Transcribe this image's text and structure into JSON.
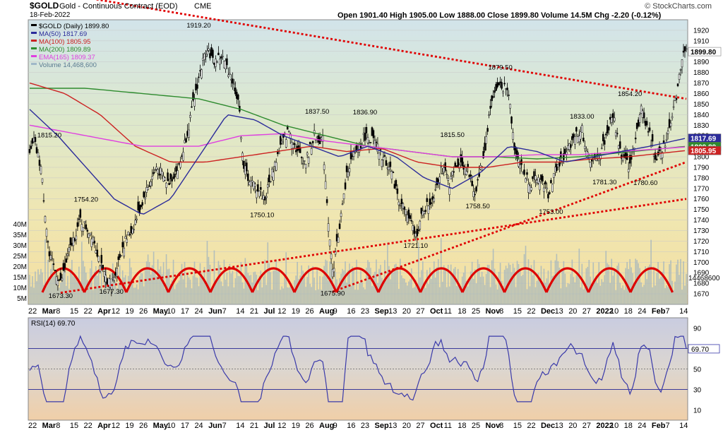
{
  "header": {
    "symbol": "$GOLD",
    "description": "Gold - Continuous Contract (EOD)",
    "exchange": "CME",
    "date": "18-Feb-2022",
    "ohlc": "Open 1901.40 High 1905.00 Low 1888.00 Close 1899.80 Volume 14.5M Chg -2.20 (-0.12%)",
    "watermark": "© StockCharts.com"
  },
  "legend": [
    {
      "text": "$GOLD (Daily) 1899.80",
      "color": "#000000"
    },
    {
      "text": "MA(50) 1817.69",
      "color": "#2b2b9a"
    },
    {
      "text": "MA(100) 1805.95",
      "color": "#cc2222"
    },
    {
      "text": "MA(200) 1809.89",
      "color": "#2e8b2e"
    },
    {
      "text": "EMA(165) 1809.37",
      "color": "#e040e0"
    },
    {
      "text": "Volume 14,468,600",
      "color": "#a0b8c8"
    }
  ],
  "price_axis": {
    "ticks": [
      "1920",
      "1910",
      "1900",
      "1890",
      "1880",
      "1870",
      "1860",
      "1850",
      "1840",
      "1830",
      "1820",
      "1810",
      "1800",
      "1790",
      "1780",
      "1770",
      "1760",
      "1750",
      "1740",
      "1730",
      "1720",
      "1710",
      "1700",
      "1690",
      "1680",
      "1670"
    ],
    "badges": [
      {
        "text": "1899.80",
        "value": 1899.8,
        "bg": "#ffffff",
        "fg": "#000000"
      },
      {
        "text": "1817.69",
        "value": 1817.69,
        "bg": "#2b2b9a",
        "fg": "#ffffff"
      },
      {
        "text": "1809.89",
        "value": 1809.89,
        "bg": "#2e8b2e",
        "fg": "#ffffff"
      },
      {
        "text": "1805.95",
        "value": 1805.95,
        "bg": "#cc2222",
        "fg": "#ffffff"
      }
    ],
    "volume_badge": "14468600"
  },
  "volume_axis": {
    "ticks": [
      "40M",
      "35M",
      "30M",
      "25M",
      "20M",
      "15M",
      "10M",
      "5M"
    ]
  },
  "x_labels": [
    "22",
    "Mar",
    "8",
    "15",
    "22",
    "Apr",
    "12",
    "19",
    "26",
    "May",
    "10",
    "17",
    "24",
    "Jun",
    "7",
    "14",
    "21",
    "Jul",
    "12",
    "19",
    "26",
    "Aug",
    "9",
    "16",
    "23",
    "Sep",
    "13",
    "20",
    "27",
    "Oct",
    "11",
    "18",
    "25",
    "Nov",
    "8",
    "15",
    "22",
    "Dec",
    "13",
    "20",
    "27",
    "2022",
    "10",
    "18",
    "24",
    "Feb",
    "7",
    "14"
  ],
  "rsi": {
    "label": "RSI(14) 69.70",
    "value_badge": "69.70",
    "ticks": [
      "90",
      "70",
      "50",
      "30",
      "10"
    ]
  },
  "chart_data": {
    "type": "candlestick",
    "title": "$GOLD Gold - Continuous Contract (EOD) CME",
    "y_range": [
      1660,
      1930
    ],
    "annotations": [
      {
        "text": "1815.20",
        "value": 1815.2
      },
      {
        "text": "1754.20",
        "value": 1754.2
      },
      {
        "text": "1673.30",
        "value": 1673.3
      },
      {
        "text": "1677.30",
        "value": 1677.3
      },
      {
        "text": "1919.20",
        "value": 1919.2
      },
      {
        "text": "1750.10",
        "value": 1750.1
      },
      {
        "text": "1837.50",
        "value": 1837.5
      },
      {
        "text": "1675.90",
        "value": 1675.9
      },
      {
        "text": "1836.90",
        "value": 1836.9
      },
      {
        "text": "1721.10",
        "value": 1721.1
      },
      {
        "text": "1815.50",
        "value": 1815.5
      },
      {
        "text": "1758.50",
        "value": 1758.5
      },
      {
        "text": "1879.50",
        "value": 1879.5
      },
      {
        "text": "1753.00",
        "value": 1753.0
      },
      {
        "text": "1833.00",
        "value": 1833.0
      },
      {
        "text": "1781.30",
        "value": 1781.3
      },
      {
        "text": "1854.20",
        "value": 1854.2
      },
      {
        "text": "1780.60",
        "value": 1780.6
      }
    ],
    "close_path": [
      {
        "x": 0,
        "v": 1800
      },
      {
        "x": 3,
        "v": 1815
      },
      {
        "x": 8,
        "v": 1790
      },
      {
        "x": 14,
        "v": 1705
      },
      {
        "x": 22,
        "v": 1680
      },
      {
        "x": 28,
        "v": 1710
      },
      {
        "x": 36,
        "v": 1740
      },
      {
        "x": 45,
        "v": 1725
      },
      {
        "x": 52,
        "v": 1690
      },
      {
        "x": 58,
        "v": 1678
      },
      {
        "x": 66,
        "v": 1715
      },
      {
        "x": 74,
        "v": 1735
      },
      {
        "x": 82,
        "v": 1765
      },
      {
        "x": 90,
        "v": 1790
      },
      {
        "x": 98,
        "v": 1775
      },
      {
        "x": 106,
        "v": 1790
      },
      {
        "x": 113,
        "v": 1830
      },
      {
        "x": 120,
        "v": 1875
      },
      {
        "x": 126,
        "v": 1905
      },
      {
        "x": 130,
        "v": 1890
      },
      {
        "x": 136,
        "v": 1895
      },
      {
        "x": 142,
        "v": 1880
      },
      {
        "x": 148,
        "v": 1855
      },
      {
        "x": 152,
        "v": 1790
      },
      {
        "x": 157,
        "v": 1775
      },
      {
        "x": 162,
        "v": 1770
      },
      {
        "x": 167,
        "v": 1760
      },
      {
        "x": 172,
        "v": 1785
      },
      {
        "x": 178,
        "v": 1810
      },
      {
        "x": 184,
        "v": 1825
      },
      {
        "x": 190,
        "v": 1805
      },
      {
        "x": 196,
        "v": 1795
      },
      {
        "x": 202,
        "v": 1820
      },
      {
        "x": 208,
        "v": 1815
      },
      {
        "x": 212,
        "v": 1740
      },
      {
        "x": 215,
        "v": 1690
      },
      {
        "x": 220,
        "v": 1735
      },
      {
        "x": 226,
        "v": 1790
      },
      {
        "x": 232,
        "v": 1805
      },
      {
        "x": 238,
        "v": 1820
      },
      {
        "x": 244,
        "v": 1815
      },
      {
        "x": 250,
        "v": 1800
      },
      {
        "x": 256,
        "v": 1790
      },
      {
        "x": 262,
        "v": 1760
      },
      {
        "x": 268,
        "v": 1745
      },
      {
        "x": 274,
        "v": 1725
      },
      {
        "x": 280,
        "v": 1750
      },
      {
        "x": 286,
        "v": 1760
      },
      {
        "x": 292,
        "v": 1790
      },
      {
        "x": 298,
        "v": 1775
      },
      {
        "x": 304,
        "v": 1795
      },
      {
        "x": 310,
        "v": 1790
      },
      {
        "x": 316,
        "v": 1765
      },
      {
        "x": 322,
        "v": 1800
      },
      {
        "x": 328,
        "v": 1855
      },
      {
        "x": 334,
        "v": 1870
      },
      {
        "x": 340,
        "v": 1860
      },
      {
        "x": 344,
        "v": 1810
      },
      {
        "x": 350,
        "v": 1785
      },
      {
        "x": 356,
        "v": 1775
      },
      {
        "x": 362,
        "v": 1780
      },
      {
        "x": 368,
        "v": 1765
      },
      {
        "x": 374,
        "v": 1790
      },
      {
        "x": 380,
        "v": 1800
      },
      {
        "x": 386,
        "v": 1820
      },
      {
        "x": 392,
        "v": 1825
      },
      {
        "x": 396,
        "v": 1800
      },
      {
        "x": 402,
        "v": 1795
      },
      {
        "x": 408,
        "v": 1815
      },
      {
        "x": 414,
        "v": 1840
      },
      {
        "x": 420,
        "v": 1800
      },
      {
        "x": 426,
        "v": 1790
      },
      {
        "x": 430,
        "v": 1820
      },
      {
        "x": 434,
        "v": 1845
      },
      {
        "x": 438,
        "v": 1830
      },
      {
        "x": 444,
        "v": 1800
      },
      {
        "x": 450,
        "v": 1810
      },
      {
        "x": 456,
        "v": 1840
      },
      {
        "x": 460,
        "v": 1865
      },
      {
        "x": 463,
        "v": 1895
      },
      {
        "x": 466,
        "v": 1899.8
      }
    ],
    "ma50": [
      {
        "x": 0,
        "v": 1845
      },
      {
        "x": 20,
        "v": 1820
      },
      {
        "x": 40,
        "v": 1790
      },
      {
        "x": 60,
        "v": 1760
      },
      {
        "x": 80,
        "v": 1745
      },
      {
        "x": 100,
        "v": 1760
      },
      {
        "x": 120,
        "v": 1800
      },
      {
        "x": 140,
        "v": 1840
      },
      {
        "x": 160,
        "v": 1835
      },
      {
        "x": 180,
        "v": 1820
      },
      {
        "x": 200,
        "v": 1810
      },
      {
        "x": 220,
        "v": 1800
      },
      {
        "x": 240,
        "v": 1810
      },
      {
        "x": 260,
        "v": 1800
      },
      {
        "x": 280,
        "v": 1780
      },
      {
        "x": 300,
        "v": 1770
      },
      {
        "x": 320,
        "v": 1785
      },
      {
        "x": 340,
        "v": 1810
      },
      {
        "x": 360,
        "v": 1805
      },
      {
        "x": 380,
        "v": 1795
      },
      {
        "x": 400,
        "v": 1800
      },
      {
        "x": 420,
        "v": 1805
      },
      {
        "x": 440,
        "v": 1810
      },
      {
        "x": 466,
        "v": 1817.69
      }
    ],
    "ma100": [
      {
        "x": 0,
        "v": 1870
      },
      {
        "x": 25,
        "v": 1860
      },
      {
        "x": 50,
        "v": 1840
      },
      {
        "x": 75,
        "v": 1810
      },
      {
        "x": 100,
        "v": 1795
      },
      {
        "x": 125,
        "v": 1795
      },
      {
        "x": 150,
        "v": 1800
      },
      {
        "x": 175,
        "v": 1805
      },
      {
        "x": 200,
        "v": 1810
      },
      {
        "x": 225,
        "v": 1805
      },
      {
        "x": 250,
        "v": 1808
      },
      {
        "x": 275,
        "v": 1795
      },
      {
        "x": 300,
        "v": 1790
      },
      {
        "x": 325,
        "v": 1790
      },
      {
        "x": 350,
        "v": 1795
      },
      {
        "x": 375,
        "v": 1795
      },
      {
        "x": 400,
        "v": 1798
      },
      {
        "x": 425,
        "v": 1800
      },
      {
        "x": 466,
        "v": 1805.95
      }
    ],
    "ma200": [
      {
        "x": 0,
        "v": 1865
      },
      {
        "x": 40,
        "v": 1865
      },
      {
        "x": 80,
        "v": 1860
      },
      {
        "x": 120,
        "v": 1855
      },
      {
        "x": 150,
        "v": 1845
      },
      {
        "x": 180,
        "v": 1830
      },
      {
        "x": 210,
        "v": 1820
      },
      {
        "x": 240,
        "v": 1810
      },
      {
        "x": 270,
        "v": 1805
      },
      {
        "x": 300,
        "v": 1800
      },
      {
        "x": 330,
        "v": 1800
      },
      {
        "x": 360,
        "v": 1798
      },
      {
        "x": 390,
        "v": 1800
      },
      {
        "x": 420,
        "v": 1804
      },
      {
        "x": 466,
        "v": 1809.89
      }
    ],
    "ema165": [
      {
        "x": 0,
        "v": 1830
      },
      {
        "x": 40,
        "v": 1820
      },
      {
        "x": 80,
        "v": 1810
      },
      {
        "x": 120,
        "v": 1810
      },
      {
        "x": 150,
        "v": 1820
      },
      {
        "x": 180,
        "v": 1822
      },
      {
        "x": 210,
        "v": 1815
      },
      {
        "x": 240,
        "v": 1810
      },
      {
        "x": 270,
        "v": 1805
      },
      {
        "x": 300,
        "v": 1800
      },
      {
        "x": 330,
        "v": 1800
      },
      {
        "x": 360,
        "v": 1802
      },
      {
        "x": 390,
        "v": 1802
      },
      {
        "x": 420,
        "v": 1805
      },
      {
        "x": 466,
        "v": 1809.37
      }
    ],
    "trendlines": [
      {
        "from": {
          "x": 0,
          "v": 1960
        },
        "to": {
          "x": 466,
          "v": 1855
        }
      },
      {
        "from": {
          "x": 22,
          "v": 1671
        },
        "to": {
          "x": 466,
          "v": 1760
        }
      },
      {
        "from": {
          "x": 215,
          "v": 1672
        },
        "to": {
          "x": 466,
          "v": 1795
        }
      }
    ],
    "rsi_range": [
      0,
      100
    ],
    "rsi_levels": [
      70,
      50,
      30
    ],
    "rsi_last": 69.7
  }
}
